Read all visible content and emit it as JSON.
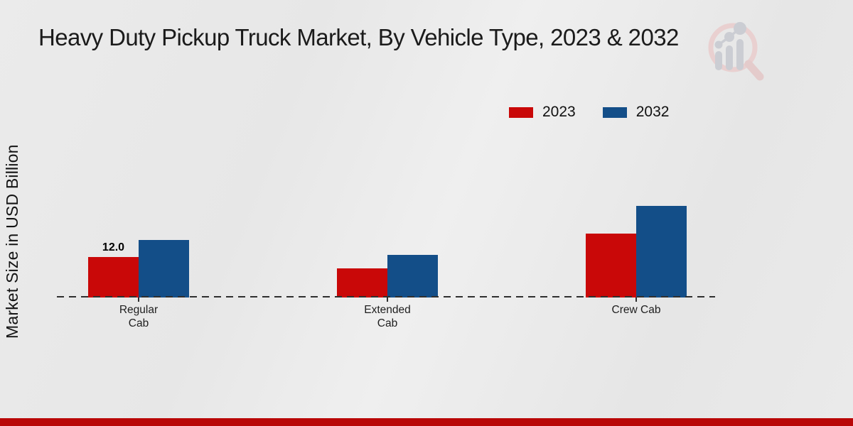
{
  "title": "Heavy Duty Pickup Truck Market, By Vehicle Type, 2023 & 2032",
  "watermark_icon": "magnifier-bar-chart-logo",
  "footer": {
    "strip_color": "#b90707"
  },
  "chart_data": {
    "type": "bar",
    "title": "Heavy Duty Pickup Truck Market, By Vehicle Type, 2023 & 2032",
    "xlabel": "",
    "ylabel": "Market Size in USD Billion",
    "categories": [
      "Regular Cab",
      "Extended Cab",
      "Crew Cab"
    ],
    "categories_display": [
      "Regular\nCab",
      "Extended\nCab",
      "Crew Cab"
    ],
    "series": [
      {
        "name": "2023",
        "color": "#c90808",
        "values": [
          12.0,
          8.6,
          19.0
        ]
      },
      {
        "name": "2032",
        "color": "#134e88",
        "values": [
          17.0,
          12.6,
          27.2
        ]
      }
    ],
    "data_labels": [
      {
        "series": "2023",
        "category": "Regular Cab",
        "text": "12.0"
      }
    ],
    "legend_position": "top-right",
    "grid": false,
    "baseline_style": "dashed",
    "ylim": [
      0,
      30
    ]
  }
}
